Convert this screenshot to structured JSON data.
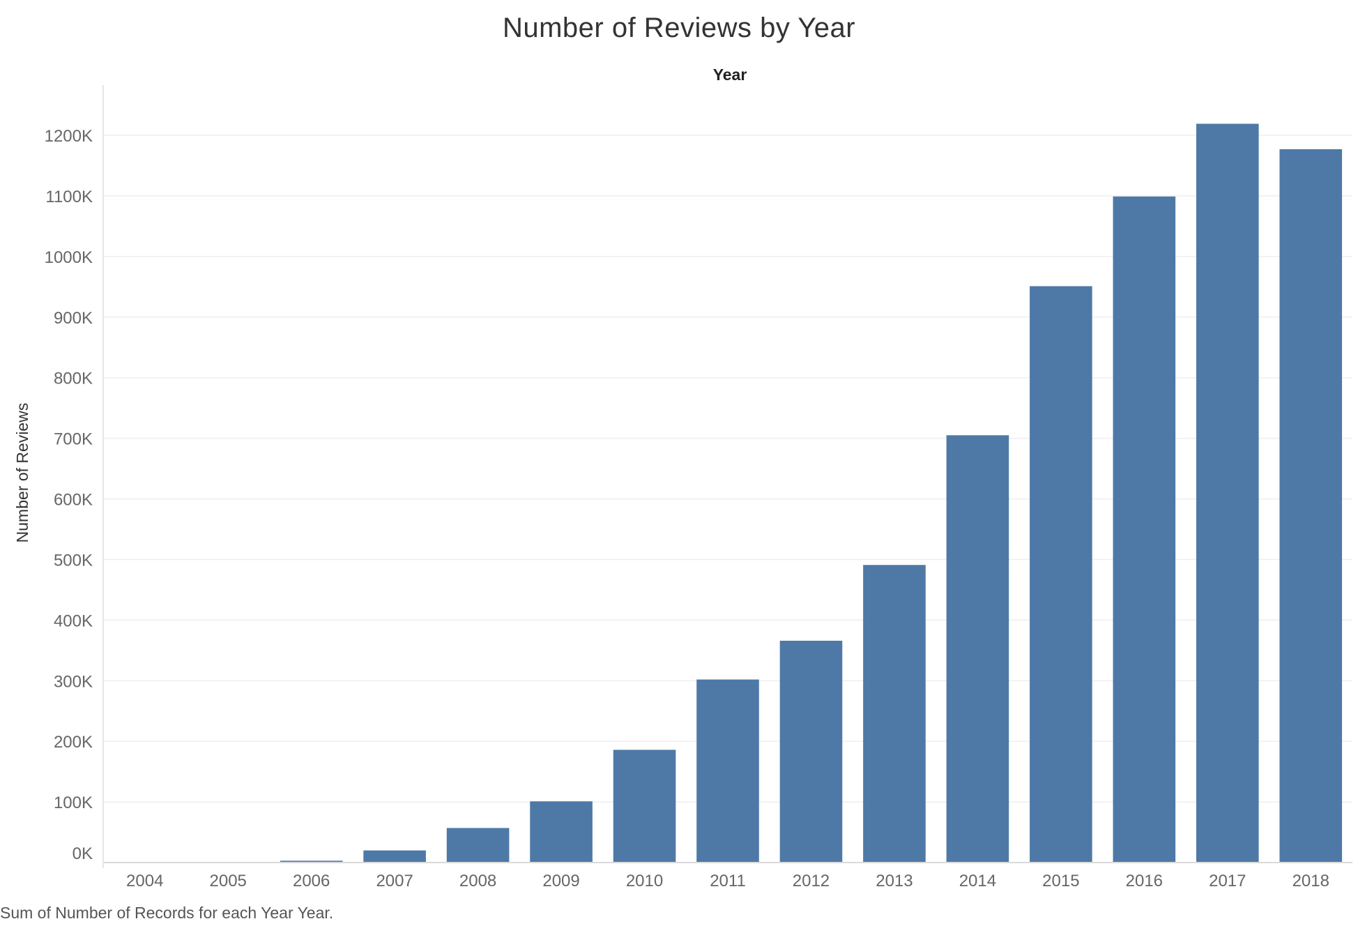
{
  "title": "Number of Reviews by Year",
  "footer": "Sum of Number of Records for each Year Year.",
  "chart_data": {
    "type": "bar",
    "title": "Number of Reviews by Year",
    "xlabel": "Year",
    "ylabel": "Number of Reviews",
    "categories": [
      "2004",
      "2005",
      "2006",
      "2007",
      "2008",
      "2009",
      "2010",
      "2011",
      "2012",
      "2013",
      "2014",
      "2015",
      "2016",
      "2017",
      "2018"
    ],
    "values": [
      200,
      800,
      3000,
      20000,
      57000,
      101000,
      186000,
      302000,
      366000,
      491000,
      705000,
      951000,
      1099000,
      1219000,
      1177000
    ],
    "ylim": [
      0,
      1280000
    ],
    "yticks": [
      0,
      100000,
      200000,
      300000,
      400000,
      500000,
      600000,
      700000,
      800000,
      900000,
      1000000,
      1100000,
      1200000
    ],
    "ytick_labels": [
      "0K",
      "100K",
      "200K",
      "300K",
      "400K",
      "500K",
      "600K",
      "700K",
      "800K",
      "900K",
      "1000K",
      "1100K",
      "1200K"
    ],
    "grid": true,
    "bar_color": "#4e79a7"
  }
}
